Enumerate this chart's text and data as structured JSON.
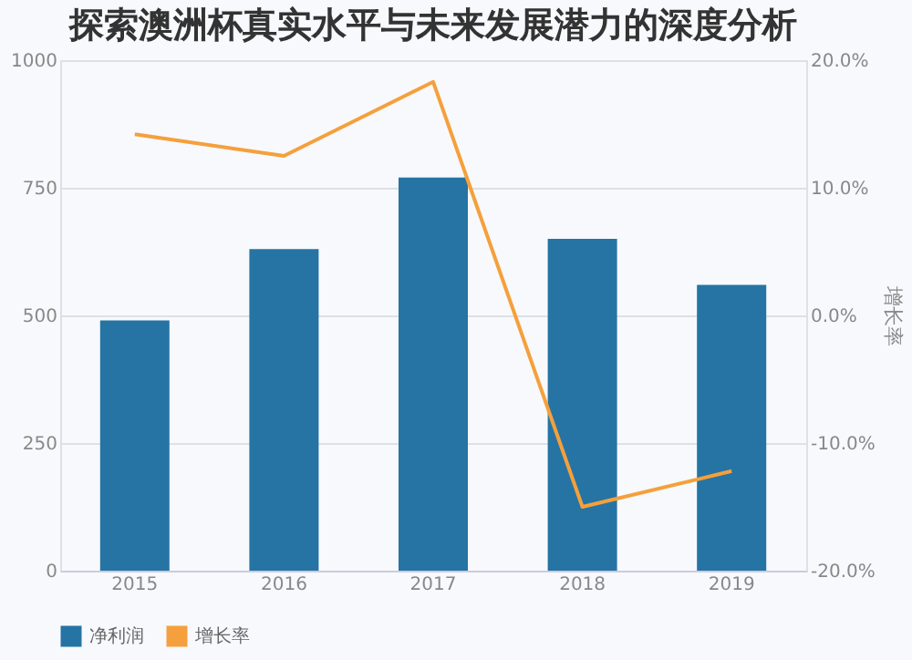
{
  "chart_data": {
    "type": "bar",
    "title": "探索澳洲杯真实水平与未来发展潜力的深度分析",
    "categories": [
      "2015",
      "2016",
      "2017",
      "2018",
      "2019"
    ],
    "series": [
      {
        "name": "净利润",
        "color": "#2574a4",
        "values": [
          490,
          630,
          770,
          650,
          560
        ]
      },
      {
        "name": "增长率",
        "type": "line",
        "axis": "y2",
        "color": "#f5a03c",
        "values": [
          14.2,
          12.5,
          18.3,
          -15.0,
          -12.2
        ]
      }
    ],
    "ylim": [
      0,
      1000
    ],
    "yticks": [
      0,
      250,
      500,
      750,
      1000
    ],
    "y2lim": [
      -20,
      20
    ],
    "y2ticks": [
      {
        "value": -20,
        "label": "-20.0%"
      },
      {
        "value": -10,
        "label": "-10.0%"
      },
      {
        "value": 0,
        "label": "0.0%"
      },
      {
        "value": 10,
        "label": "10.0%"
      },
      {
        "value": 20,
        "label": "20.0%"
      }
    ],
    "y2label": "增长率",
    "grid": "y",
    "legend": "bottom",
    "marker": "none",
    "line_style": "solid"
  }
}
